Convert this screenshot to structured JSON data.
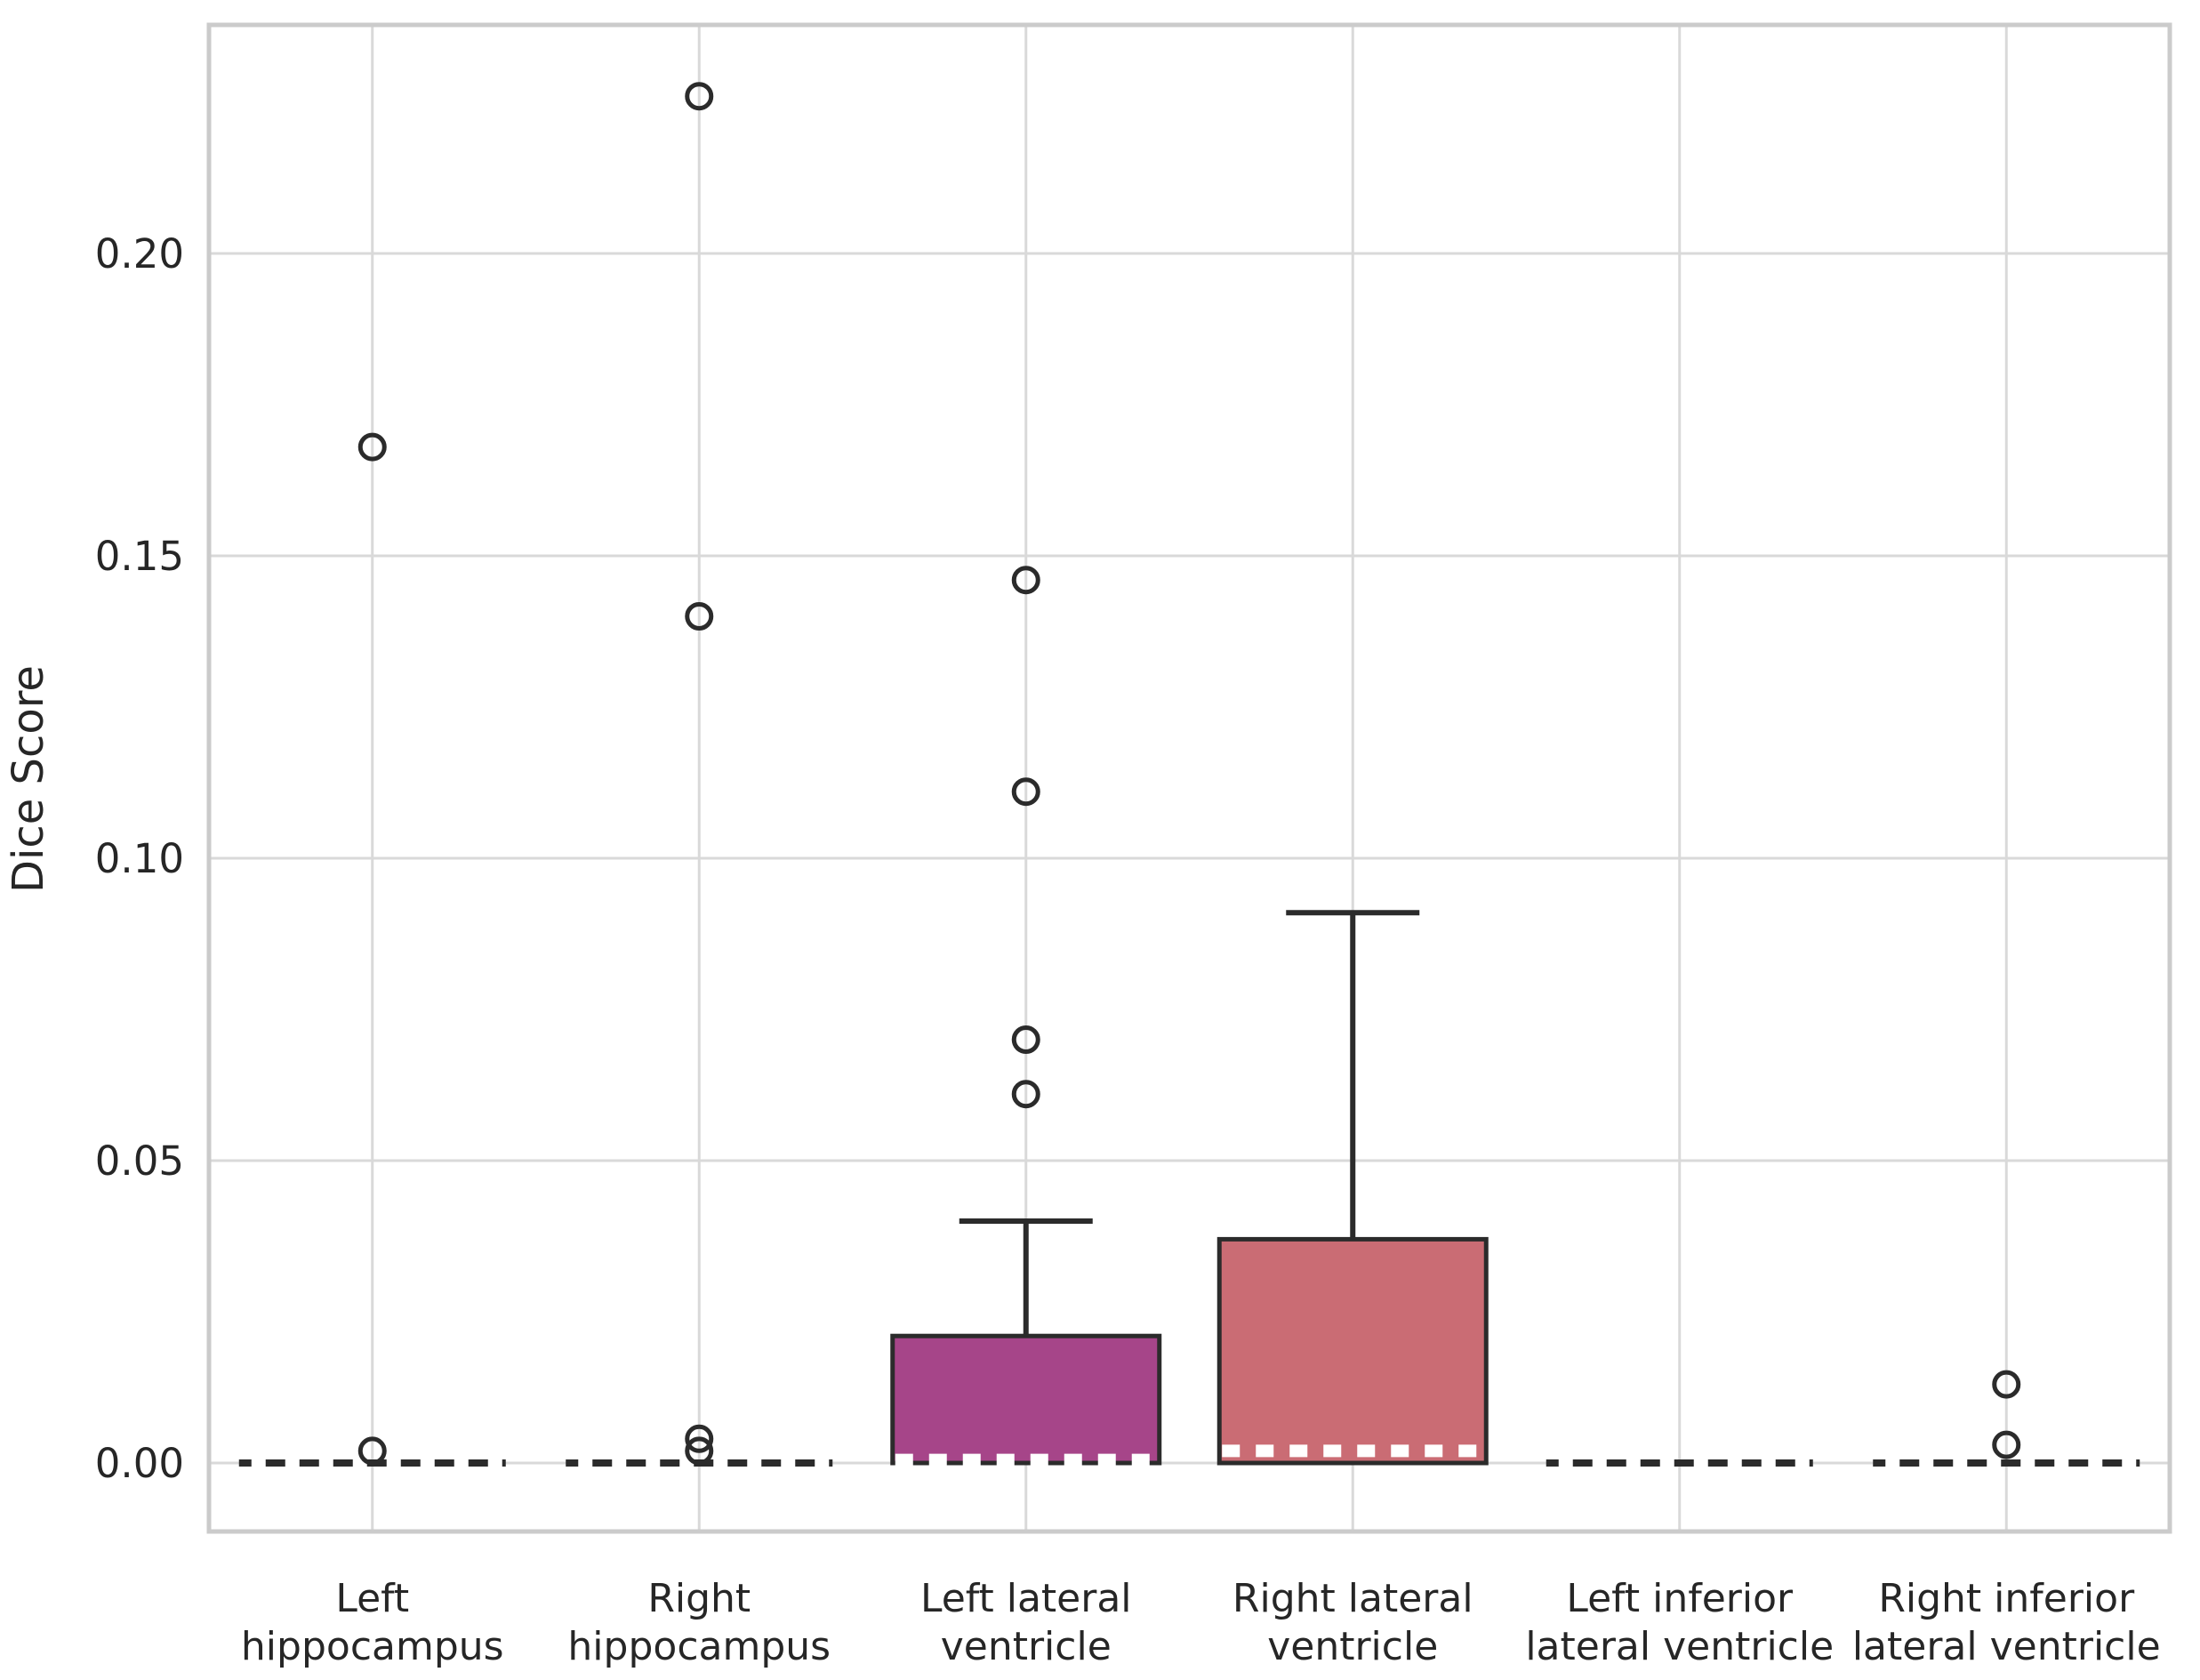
{
  "figure": {
    "ylabel": "Dice Score",
    "background": "#ffffff"
  },
  "palette": {
    "grid": "#d9d9d9",
    "spine": "#cbcbcb",
    "edge": "#2b2b2b",
    "text": "#262626",
    "median": "#ffffff"
  },
  "chart_data": {
    "type": "box",
    "title": "",
    "xlabel": "",
    "ylabel": "Dice Score",
    "grid": true,
    "legend": false,
    "ylim": [
      -0.011,
      0.238
    ],
    "yticks": [
      0.0,
      0.05,
      0.1,
      0.15,
      0.2
    ],
    "ytick_labels": [
      "0.00",
      "0.05",
      "0.10",
      "0.15",
      "0.20"
    ],
    "categories": [
      "Left hippocampus",
      "Right hippocampus",
      "Left lateral ventricle",
      "Right lateral ventricle",
      "Left inferior lateral ventricle",
      "Right inferior lateral ventricle"
    ],
    "boxes": [
      {
        "key": "left-hippocampus",
        "label_lines": [
          "Left",
          "hippocampus"
        ],
        "q1": 0,
        "median": 0,
        "q3": 0,
        "whisker_low": 0,
        "whisker_high": 0,
        "collapsed": true,
        "fill": null,
        "outliers": [
          0.168,
          0.002
        ]
      },
      {
        "key": "right-hippocampus",
        "label_lines": [
          "Right",
          "hippocampus"
        ],
        "q1": 0,
        "median": 0,
        "q3": 0,
        "whisker_low": 0,
        "whisker_high": 0,
        "collapsed": true,
        "fill": null,
        "outliers": [
          0.226,
          0.14,
          0.004,
          0.002
        ]
      },
      {
        "key": "left-lateral-ventricle",
        "label_lines": [
          "Left lateral",
          "ventricle"
        ],
        "q1": 0,
        "median": 0.0005,
        "q3": 0.021,
        "whisker_low": 0,
        "whisker_high": 0.04,
        "collapsed": false,
        "fill": "#a64589",
        "outliers": [
          0.146,
          0.111,
          0.07,
          0.061
        ]
      },
      {
        "key": "right-lateral-ventricle",
        "label_lines": [
          "Right lateral",
          "ventricle"
        ],
        "q1": 0,
        "median": 0.002,
        "q3": 0.037,
        "whisker_low": 0,
        "whisker_high": 0.091,
        "collapsed": false,
        "fill": "#ca6c74",
        "outliers": []
      },
      {
        "key": "left-inferior-lateral-ventricle",
        "label_lines": [
          "Left inferior",
          "lateral ventricle"
        ],
        "q1": 0,
        "median": 0,
        "q3": 0,
        "whisker_low": 0,
        "whisker_high": 0,
        "collapsed": true,
        "fill": null,
        "outliers": []
      },
      {
        "key": "right-inferior-lateral-ventricle",
        "label_lines": [
          "Right inferior",
          "lateral ventricle"
        ],
        "q1": 0,
        "median": 0,
        "q3": 0,
        "whisker_low": 0,
        "whisker_high": 0,
        "collapsed": true,
        "fill": null,
        "outliers": [
          0.013,
          0.003
        ]
      }
    ]
  }
}
